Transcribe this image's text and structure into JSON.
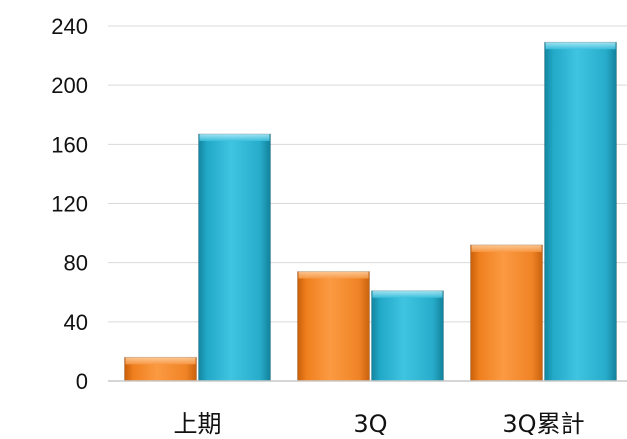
{
  "chart_data": {
    "type": "bar",
    "categories": [
      "上期",
      "3Q",
      "3Q累計"
    ],
    "series": [
      {
        "color": "#f58a2a",
        "values": [
          16,
          74,
          92
        ]
      },
      {
        "color": "#2db6d4",
        "values": [
          167,
          61,
          229
        ]
      }
    ],
    "ylim": [
      0,
      240
    ],
    "yticks": [
      0,
      40,
      80,
      120,
      160,
      200,
      240
    ],
    "grid": true,
    "legend": "none"
  }
}
